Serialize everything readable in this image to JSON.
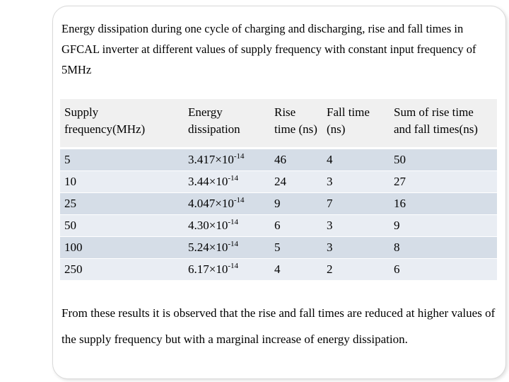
{
  "heading": "Energy dissipation during one cycle of charging and discharging, rise and fall times in GFCAL inverter at different values of supply frequency with constant input frequency of 5MHz",
  "table": {
    "headers": [
      "Supply frequency(MHz)",
      "Energy dissipation",
      "Rise time (ns)",
      "Fall time (ns)",
      "Sum of rise time and fall times(ns)"
    ],
    "rows": [
      {
        "supply": "5",
        "energy_mantissa": "3.417×10",
        "energy_exponent": "-14",
        "rise": "46",
        "fall": "4",
        "sum": "50"
      },
      {
        "supply": "10",
        "energy_mantissa": "3.44×10",
        "energy_exponent": "-14",
        "rise": "24",
        "fall": "3",
        "sum": "27"
      },
      {
        "supply": "25",
        "energy_mantissa": "4.047×10",
        "energy_exponent": "-14",
        "rise": "9",
        "fall": "7",
        "sum": "16"
      },
      {
        "supply": "50",
        "energy_mantissa": "4.30×10",
        "energy_exponent": "-14",
        "rise": "6",
        "fall": "3",
        "sum": "9"
      },
      {
        "supply": "100",
        "energy_mantissa": "5.24×10",
        "energy_exponent": "-14",
        "rise": "5",
        "fall": "3",
        "sum": "8"
      },
      {
        "supply": "250",
        "energy_mantissa": "6.17×10",
        "energy_exponent": "-14",
        "rise": "4",
        "fall": "2",
        "sum": "6"
      }
    ]
  },
  "conclusion": "From these results it is observed that the rise and fall times are reduced at higher values of the supply frequency but with a marginal increase of energy dissipation.",
  "colors": {
    "header_bg": "#f0f0f0",
    "row_odd_bg": "#d5dde7",
    "row_even_bg": "#e9edf3"
  }
}
